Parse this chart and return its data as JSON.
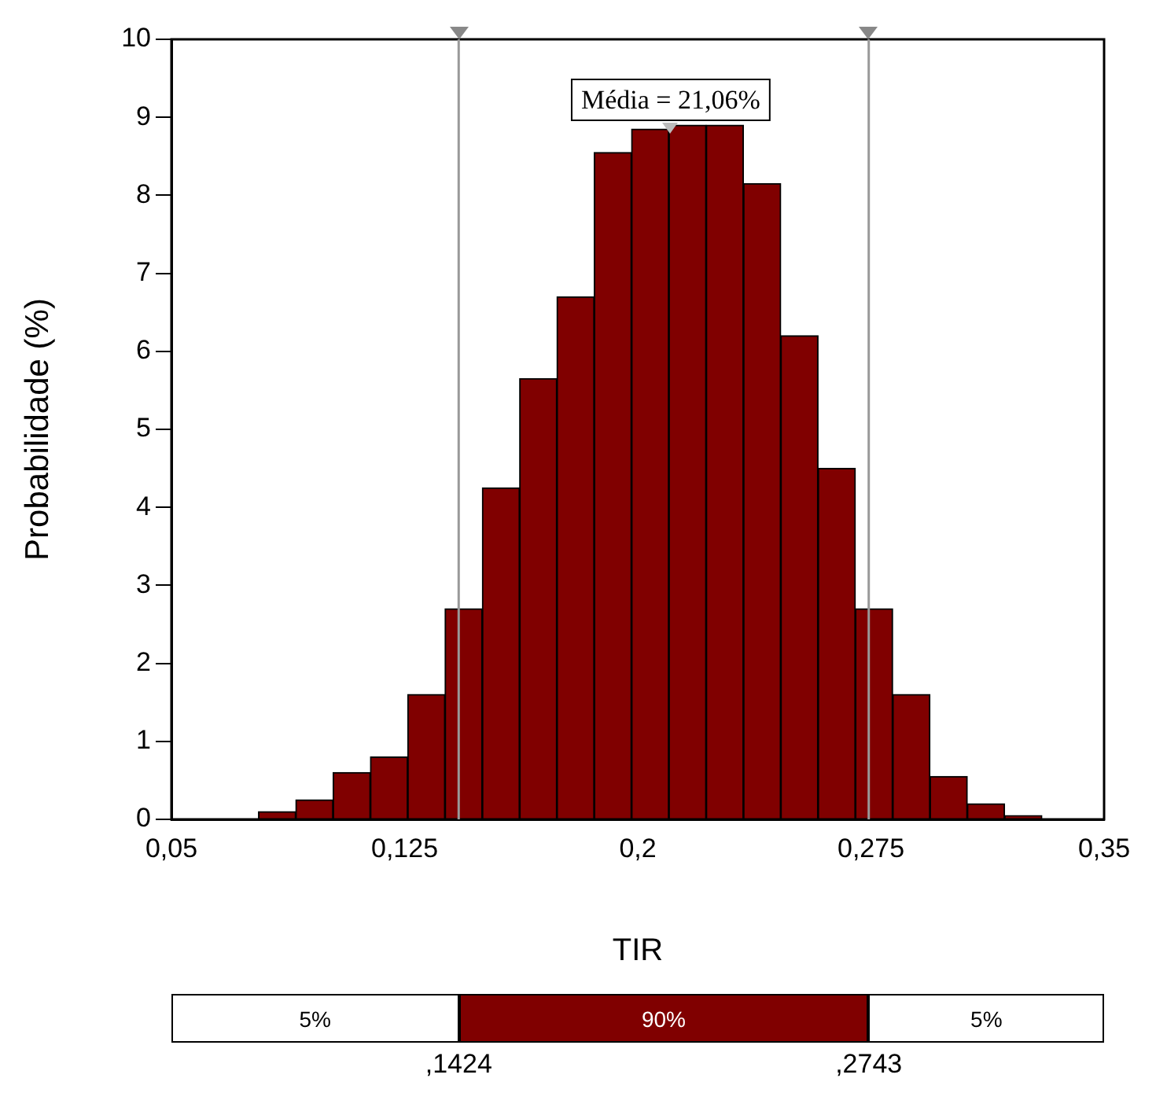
{
  "chart_data": {
    "type": "histogram",
    "xlabel": "TIR",
    "ylabel": "Probabilidade (%)",
    "color": "#800000",
    "bins": [
      0.078,
      0.09,
      0.102,
      0.114,
      0.126,
      0.138,
      0.15,
      0.162,
      0.174,
      0.186,
      0.198,
      0.21,
      0.222,
      0.234,
      0.246,
      0.258,
      0.27,
      0.282,
      0.294,
      0.306,
      0.318,
      0.33
    ],
    "values": [
      0.1,
      0.25,
      0.6,
      0.8,
      1.6,
      2.7,
      4.25,
      5.65,
      6.7,
      8.55,
      8.85,
      8.9,
      8.9,
      8.15,
      6.2,
      4.5,
      2.7,
      1.6,
      0.55,
      0.2,
      0.05
    ],
    "xlim": [
      0.05,
      0.35
    ],
    "xticks": [
      {
        "value": 0.05,
        "label": "0,05"
      },
      {
        "value": 0.125,
        "label": "0,125"
      },
      {
        "value": 0.2,
        "label": "0,2"
      },
      {
        "value": 0.275,
        "label": "0,275"
      },
      {
        "value": 0.35,
        "label": "0,35"
      }
    ],
    "ylim": [
      0,
      10
    ],
    "yticks": [
      0,
      1,
      2,
      3,
      4,
      5,
      6,
      7,
      8,
      9,
      10
    ],
    "grid": false,
    "ref_lines": [
      {
        "axis": "x",
        "value": 0.1424,
        "color": "#999999"
      },
      {
        "axis": "x",
        "value": 0.2743,
        "color": "#999999"
      }
    ],
    "annotations": [
      {
        "text": "Média = 21,06%",
        "x": 0.2106,
        "y": 8.8
      },
      "5%",
      "90%",
      "5%",
      ",1424",
      ",2743"
    ],
    "legend": false
  }
}
